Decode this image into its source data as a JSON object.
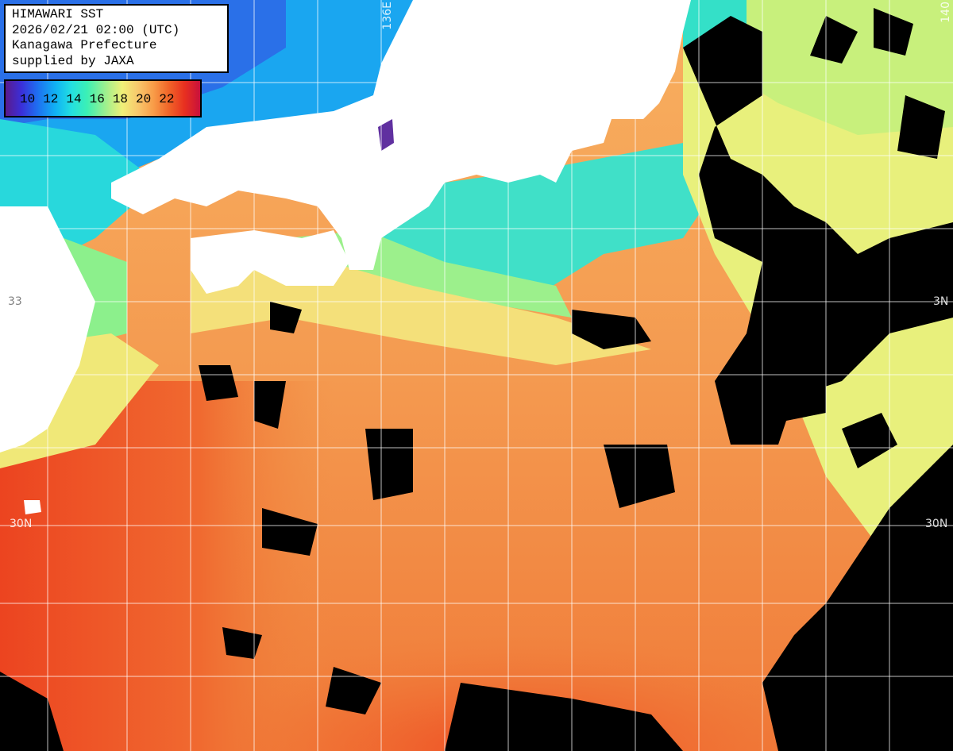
{
  "title": {
    "line1": "HIMAWARI SST",
    "line2": "2026/02/21 02:00 (UTC)",
    "line3": "Kanagawa Prefecture",
    "line4": "supplied by JAXA"
  },
  "legend": {
    "labels": [
      "10",
      "12",
      "14",
      "16",
      "18",
      "20",
      "22"
    ]
  },
  "grid_labels": {
    "lon_136e": "136E",
    "lat_30n_left": "30N",
    "lat_30n_right": "30N",
    "lat_33n_right": "3N",
    "lat_33n_left": "33",
    "top_right": "140"
  },
  "colors": {
    "land": "#ffffff",
    "cloud": "#000000",
    "grid": "#ffffff",
    "sst_warm": "#f08c3c",
    "sst_hot": "#ec4a20",
    "sst_mid": "#f8b868",
    "sst_cool": "#e8f078",
    "sst_cold": "#54e8b0",
    "sst_colder": "#18a0f0"
  }
}
